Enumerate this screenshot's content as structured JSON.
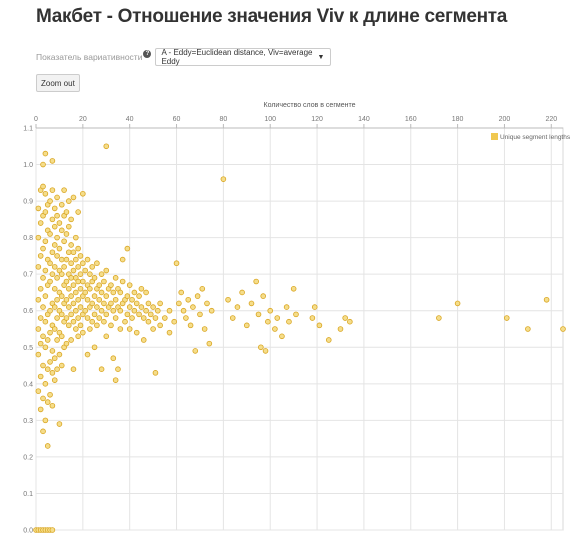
{
  "page": {
    "title": "Макбет - Отношение значения Viv к длине сегмента",
    "selector_label": "Показатель вариативности",
    "selector_value": "A - Eddy=Euclidean distance, Viv=average Eddy",
    "zoom_out_label": "Zoom out"
  },
  "colors": {
    "point_fill": "#f5dd8a",
    "point_stroke": "#d9a520",
    "grid": "#e4e4e4",
    "legend_swatch": "#f0c850"
  },
  "icons": {
    "help": "question-circle-icon",
    "dropdown": "chevron-down-icon"
  },
  "chart_data": {
    "type": "scatter",
    "xlabel": "Количество слов в сегменте",
    "ylabel": "",
    "x_axis_position": "top",
    "xlim": [
      0,
      225
    ],
    "ylim": [
      0,
      1.1
    ],
    "x_ticks": [
      0,
      20,
      40,
      60,
      80,
      100,
      120,
      140,
      160,
      180,
      200,
      220
    ],
    "y_ticks": [
      0.0,
      0.1,
      0.2,
      0.3,
      0.4,
      0.5,
      0.6,
      0.7,
      0.8,
      0.9,
      1.0,
      1.1
    ],
    "grid": true,
    "legend_position": "top-right",
    "series": [
      {
        "name": "Unique segment lengths",
        "points": [
          [
            0,
            0
          ],
          [
            1,
            0
          ],
          [
            2,
            0
          ],
          [
            3,
            0
          ],
          [
            4,
            0
          ],
          [
            5,
            0
          ],
          [
            6,
            0
          ],
          [
            7,
            0
          ],
          [
            1,
            0.38
          ],
          [
            1,
            0.48
          ],
          [
            1,
            0.55
          ],
          [
            1,
            0.63
          ],
          [
            1,
            0.72
          ],
          [
            1,
            0.8
          ],
          [
            1,
            0.88
          ],
          [
            2,
            0.33
          ],
          [
            2,
            0.42
          ],
          [
            2,
            0.51
          ],
          [
            2,
            0.58
          ],
          [
            2,
            0.66
          ],
          [
            2,
            0.75
          ],
          [
            2,
            0.84
          ],
          [
            2,
            0.93
          ],
          [
            3,
            0.27
          ],
          [
            3,
            0.36
          ],
          [
            3,
            0.45
          ],
          [
            3,
            0.53
          ],
          [
            3,
            0.61
          ],
          [
            3,
            0.69
          ],
          [
            3,
            0.77
          ],
          [
            3,
            0.86
          ],
          [
            3,
            0.94
          ],
          [
            3,
            1.0
          ],
          [
            4,
            0.3
          ],
          [
            4,
            0.4
          ],
          [
            4,
            0.5
          ],
          [
            4,
            0.57
          ],
          [
            4,
            0.64
          ],
          [
            4,
            0.71
          ],
          [
            4,
            0.79
          ],
          [
            4,
            0.87
          ],
          [
            4,
            0.92
          ],
          [
            4,
            1.03
          ],
          [
            5,
            0.23
          ],
          [
            5,
            0.35
          ],
          [
            5,
            0.44
          ],
          [
            5,
            0.52
          ],
          [
            5,
            0.59
          ],
          [
            5,
            0.67
          ],
          [
            5,
            0.74
          ],
          [
            5,
            0.82
          ],
          [
            5,
            0.89
          ],
          [
            6,
            0.37
          ],
          [
            6,
            0.46
          ],
          [
            6,
            0.54
          ],
          [
            6,
            0.6
          ],
          [
            6,
            0.68
          ],
          [
            6,
            0.73
          ],
          [
            6,
            0.81
          ],
          [
            6,
            0.9
          ],
          [
            7,
            0.34
          ],
          [
            7,
            0.43
          ],
          [
            7,
            0.49
          ],
          [
            7,
            0.56
          ],
          [
            7,
            0.62
          ],
          [
            7,
            0.7
          ],
          [
            7,
            0.76
          ],
          [
            7,
            0.85
          ],
          [
            7,
            0.93
          ],
          [
            7,
            1.01
          ],
          [
            8,
            0.41
          ],
          [
            8,
            0.47
          ],
          [
            8,
            0.55
          ],
          [
            8,
            0.61
          ],
          [
            8,
            0.66
          ],
          [
            8,
            0.72
          ],
          [
            8,
            0.78
          ],
          [
            8,
            0.83
          ],
          [
            8,
            0.88
          ],
          [
            9,
            0.44
          ],
          [
            9,
            0.52
          ],
          [
            9,
            0.58
          ],
          [
            9,
            0.63
          ],
          [
            9,
            0.69
          ],
          [
            9,
            0.75
          ],
          [
            9,
            0.8
          ],
          [
            9,
            0.86
          ],
          [
            9,
            0.91
          ],
          [
            10,
            0.29
          ],
          [
            10,
            0.48
          ],
          [
            10,
            0.54
          ],
          [
            10,
            0.6
          ],
          [
            10,
            0.65
          ],
          [
            10,
            0.71
          ],
          [
            10,
            0.77
          ],
          [
            10,
            0.84
          ],
          [
            11,
            0.45
          ],
          [
            11,
            0.53
          ],
          [
            11,
            0.59
          ],
          [
            11,
            0.64
          ],
          [
            11,
            0.7
          ],
          [
            11,
            0.74
          ],
          [
            11,
            0.82
          ],
          [
            11,
            0.89
          ],
          [
            12,
            0.5
          ],
          [
            12,
            0.57
          ],
          [
            12,
            0.62
          ],
          [
            12,
            0.67
          ],
          [
            12,
            0.72
          ],
          [
            12,
            0.79
          ],
          [
            12,
            0.86
          ],
          [
            12,
            0.93
          ],
          [
            13,
            0.51
          ],
          [
            13,
            0.58
          ],
          [
            13,
            0.63
          ],
          [
            13,
            0.68
          ],
          [
            13,
            0.74
          ],
          [
            13,
            0.81
          ],
          [
            13,
            0.87
          ],
          [
            14,
            0.56
          ],
          [
            14,
            0.61
          ],
          [
            14,
            0.66
          ],
          [
            14,
            0.7
          ],
          [
            14,
            0.76
          ],
          [
            14,
            0.83
          ],
          [
            14,
            0.9
          ],
          [
            15,
            0.52
          ],
          [
            15,
            0.59
          ],
          [
            15,
            0.64
          ],
          [
            15,
            0.69
          ],
          [
            15,
            0.73
          ],
          [
            15,
            0.78
          ],
          [
            15,
            0.85
          ],
          [
            16,
            0.44
          ],
          [
            16,
            0.57
          ],
          [
            16,
            0.62
          ],
          [
            16,
            0.67
          ],
          [
            16,
            0.71
          ],
          [
            16,
            0.76
          ],
          [
            16,
            0.91
          ],
          [
            17,
            0.55
          ],
          [
            17,
            0.6
          ],
          [
            17,
            0.65
          ],
          [
            17,
            0.69
          ],
          [
            17,
            0.74
          ],
          [
            17,
            0.8
          ],
          [
            18,
            0.53
          ],
          [
            18,
            0.58
          ],
          [
            18,
            0.63
          ],
          [
            18,
            0.68
          ],
          [
            18,
            0.72
          ],
          [
            18,
            0.77
          ],
          [
            18,
            0.87
          ],
          [
            19,
            0.56
          ],
          [
            19,
            0.61
          ],
          [
            19,
            0.66
          ],
          [
            19,
            0.7
          ],
          [
            19,
            0.75
          ],
          [
            20,
            0.54
          ],
          [
            20,
            0.59
          ],
          [
            20,
            0.64
          ],
          [
            20,
            0.68
          ],
          [
            20,
            0.73
          ],
          [
            20,
            0.92
          ],
          [
            21,
            0.6
          ],
          [
            21,
            0.65
          ],
          [
            21,
            0.71
          ],
          [
            22,
            0.48
          ],
          [
            22,
            0.58
          ],
          [
            22,
            0.63
          ],
          [
            22,
            0.67
          ],
          [
            22,
            0.74
          ],
          [
            23,
            0.55
          ],
          [
            23,
            0.61
          ],
          [
            23,
            0.66
          ],
          [
            23,
            0.7
          ],
          [
            24,
            0.57
          ],
          [
            24,
            0.62
          ],
          [
            24,
            0.68
          ],
          [
            24,
            0.72
          ],
          [
            25,
            0.5
          ],
          [
            25,
            0.59
          ],
          [
            25,
            0.64
          ],
          [
            25,
            0.69
          ],
          [
            26,
            0.56
          ],
          [
            26,
            0.61
          ],
          [
            26,
            0.66
          ],
          [
            26,
            0.73
          ],
          [
            27,
            0.58
          ],
          [
            27,
            0.63
          ],
          [
            27,
            0.67
          ],
          [
            28,
            0.44
          ],
          [
            28,
            0.6
          ],
          [
            28,
            0.65
          ],
          [
            28,
            0.7
          ],
          [
            29,
            0.57
          ],
          [
            29,
            0.62
          ],
          [
            29,
            0.68
          ],
          [
            30,
            0.53
          ],
          [
            30,
            0.59
          ],
          [
            30,
            0.64
          ],
          [
            30,
            0.71
          ],
          [
            30,
            1.05
          ],
          [
            31,
            0.61
          ],
          [
            31,
            0.66
          ],
          [
            32,
            0.56
          ],
          [
            32,
            0.62
          ],
          [
            32,
            0.67
          ],
          [
            33,
            0.47
          ],
          [
            33,
            0.6
          ],
          [
            33,
            0.65
          ],
          [
            34,
            0.41
          ],
          [
            34,
            0.58
          ],
          [
            34,
            0.63
          ],
          [
            34,
            0.69
          ],
          [
            35,
            0.44
          ],
          [
            35,
            0.61
          ],
          [
            35,
            0.66
          ],
          [
            36,
            0.55
          ],
          [
            36,
            0.6
          ],
          [
            36,
            0.65
          ],
          [
            37,
            0.62
          ],
          [
            37,
            0.68
          ],
          [
            37,
            0.74
          ],
          [
            38,
            0.57
          ],
          [
            38,
            0.63
          ],
          [
            39,
            0.59
          ],
          [
            39,
            0.64
          ],
          [
            39,
            0.77
          ],
          [
            40,
            0.55
          ],
          [
            40,
            0.61
          ],
          [
            40,
            0.67
          ],
          [
            41,
            0.58
          ],
          [
            41,
            0.63
          ],
          [
            42,
            0.6
          ],
          [
            42,
            0.65
          ],
          [
            43,
            0.54
          ],
          [
            43,
            0.62
          ],
          [
            44,
            0.59
          ],
          [
            44,
            0.64
          ],
          [
            45,
            0.61
          ],
          [
            45,
            0.66
          ],
          [
            46,
            0.52
          ],
          [
            46,
            0.58
          ],
          [
            47,
            0.6
          ],
          [
            47,
            0.65
          ],
          [
            48,
            0.57
          ],
          [
            48,
            0.62
          ],
          [
            49,
            0.59
          ],
          [
            50,
            0.55
          ],
          [
            50,
            0.61
          ],
          [
            51,
            0.43
          ],
          [
            51,
            0.58
          ],
          [
            52,
            0.6
          ],
          [
            53,
            0.56
          ],
          [
            53,
            0.62
          ],
          [
            55,
            0.58
          ],
          [
            57,
            0.54
          ],
          [
            57,
            0.6
          ],
          [
            59,
            0.57
          ],
          [
            60,
            0.73
          ],
          [
            61,
            0.62
          ],
          [
            62,
            0.65
          ],
          [
            63,
            0.6
          ],
          [
            64,
            0.58
          ],
          [
            65,
            0.63
          ],
          [
            66,
            0.56
          ],
          [
            67,
            0.61
          ],
          [
            68,
            0.49
          ],
          [
            69,
            0.64
          ],
          [
            70,
            0.59
          ],
          [
            71,
            0.66
          ],
          [
            72,
            0.55
          ],
          [
            73,
            0.62
          ],
          [
            74,
            0.51
          ],
          [
            75,
            0.6
          ],
          [
            80,
            0.96
          ],
          [
            82,
            0.63
          ],
          [
            84,
            0.58
          ],
          [
            86,
            0.61
          ],
          [
            88,
            0.65
          ],
          [
            90,
            0.56
          ],
          [
            92,
            0.62
          ],
          [
            94,
            0.68
          ],
          [
            95,
            0.59
          ],
          [
            96,
            0.5
          ],
          [
            97,
            0.64
          ],
          [
            98,
            0.49
          ],
          [
            99,
            0.57
          ],
          [
            100,
            0.6
          ],
          [
            102,
            0.55
          ],
          [
            103,
            0.58
          ],
          [
            105,
            0.53
          ],
          [
            107,
            0.61
          ],
          [
            108,
            0.57
          ],
          [
            110,
            0.66
          ],
          [
            111,
            0.59
          ],
          [
            118,
            0.58
          ],
          [
            119,
            0.61
          ],
          [
            121,
            0.56
          ],
          [
            125,
            0.52
          ],
          [
            130,
            0.55
          ],
          [
            132,
            0.58
          ],
          [
            134,
            0.57
          ],
          [
            172,
            0.58
          ],
          [
            180,
            0.62
          ],
          [
            201,
            0.58
          ],
          [
            210,
            0.55
          ],
          [
            218,
            0.63
          ],
          [
            225,
            0.55
          ]
        ]
      }
    ]
  }
}
